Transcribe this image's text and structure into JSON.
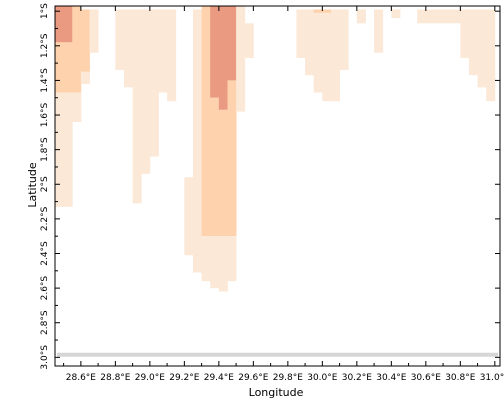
{
  "map": {
    "xlabel": "Longitude",
    "ylabel": "Latitude",
    "xlim": [
      28.45,
      31.03
    ],
    "ylim": [
      -3.05,
      -0.97
    ],
    "x_ticks": [
      {
        "value": 28.6,
        "label": "28.6°E"
      },
      {
        "value": 28.8,
        "label": "28.8°E"
      },
      {
        "value": 29.0,
        "label": "29.0°E"
      },
      {
        "value": 29.2,
        "label": "29.2°E"
      },
      {
        "value": 29.4,
        "label": "29.4°E"
      },
      {
        "value": 29.6,
        "label": "29.6°E"
      },
      {
        "value": 29.8,
        "label": "29.8°E"
      },
      {
        "value": 30.0,
        "label": "30.0°E"
      },
      {
        "value": 30.2,
        "label": "30.2°E"
      },
      {
        "value": 30.4,
        "label": "30.4°E"
      },
      {
        "value": 30.6,
        "label": "30.6°E"
      },
      {
        "value": 30.8,
        "label": "30.8°E"
      },
      {
        "value": 31.0,
        "label": "31.0°E"
      }
    ],
    "y_ticks": [
      {
        "value": -1.0,
        "label": "1°S"
      },
      {
        "value": -1.2,
        "label": "1.2°S"
      },
      {
        "value": -1.4,
        "label": "1.4°S"
      },
      {
        "value": -1.6,
        "label": "1.6°S"
      },
      {
        "value": -1.8,
        "label": "1.8°S"
      },
      {
        "value": -2.0,
        "label": "2°S"
      },
      {
        "value": -2.2,
        "label": "2.2°S"
      },
      {
        "value": -2.4,
        "label": "2.4°S"
      },
      {
        "value": -2.6,
        "label": "2.6°S"
      },
      {
        "value": -2.8,
        "label": "2.8°S"
      },
      {
        "value": -3.0,
        "label": "3.0°S"
      }
    ],
    "colors": {
      "level1": "#fbe8d6",
      "level2": "#fdd2ad",
      "level3": "#e99a80",
      "boundary": "#d6d6d6"
    },
    "cell_lon_width": 0.05,
    "boundary_lat": -2.985,
    "columns": [
      {
        "lon": 28.475,
        "bands": [
          {
            "level": 3,
            "top": -0.97,
            "bottom": -1.18
          },
          {
            "level": 2,
            "top": -1.18,
            "bottom": -1.47
          },
          {
            "level": 1,
            "top": -1.47,
            "bottom": -2.13
          }
        ]
      },
      {
        "lon": 28.525,
        "bands": [
          {
            "level": 3,
            "top": -0.97,
            "bottom": -1.18
          },
          {
            "level": 2,
            "top": -1.18,
            "bottom": -1.47
          },
          {
            "level": 1,
            "top": -1.47,
            "bottom": -2.13
          }
        ]
      },
      {
        "lon": 28.575,
        "bands": [
          {
            "level": 2,
            "top": -0.97,
            "bottom": -1.47
          },
          {
            "level": 1,
            "top": -1.47,
            "bottom": -1.64
          }
        ]
      },
      {
        "lon": 28.625,
        "bands": [
          {
            "level": 2,
            "top": -0.99,
            "bottom": -1.35
          },
          {
            "level": 1,
            "top": -1.35,
            "bottom": -1.42
          }
        ]
      },
      {
        "lon": 28.675,
        "bands": [
          {
            "level": 1,
            "top": -0.99,
            "bottom": -1.24
          }
        ]
      },
      {
        "lon": 28.825,
        "bands": [
          {
            "level": 1,
            "top": -0.99,
            "bottom": -1.34
          }
        ]
      },
      {
        "lon": 28.875,
        "bands": [
          {
            "level": 1,
            "top": -0.99,
            "bottom": -1.44
          }
        ]
      },
      {
        "lon": 28.925,
        "bands": [
          {
            "level": 1,
            "top": -0.99,
            "bottom": -2.11
          }
        ]
      },
      {
        "lon": 28.975,
        "bands": [
          {
            "level": 1,
            "top": -0.99,
            "bottom": -1.94
          }
        ]
      },
      {
        "lon": 29.025,
        "bands": [
          {
            "level": 1,
            "top": -0.99,
            "bottom": -1.84
          }
        ]
      },
      {
        "lon": 29.075,
        "bands": [
          {
            "level": 1,
            "top": -0.99,
            "bottom": -1.47
          }
        ]
      },
      {
        "lon": 29.125,
        "bands": [
          {
            "level": 1,
            "top": -0.99,
            "bottom": -1.52
          }
        ]
      },
      {
        "lon": 29.225,
        "bands": [
          {
            "level": 1,
            "top": -1.96,
            "bottom": -2.41
          }
        ]
      },
      {
        "lon": 29.275,
        "bands": [
          {
            "level": 1,
            "top": -0.99,
            "bottom": -2.51
          }
        ]
      },
      {
        "lon": 29.325,
        "bands": [
          {
            "level": 2,
            "top": -0.97,
            "bottom": -2.3
          },
          {
            "level": 1,
            "top": -2.3,
            "bottom": -2.56
          }
        ]
      },
      {
        "lon": 29.375,
        "bands": [
          {
            "level": 3,
            "top": -0.97,
            "bottom": -1.5
          },
          {
            "level": 2,
            "top": -1.5,
            "bottom": -2.3
          },
          {
            "level": 1,
            "top": -2.3,
            "bottom": -2.6
          }
        ]
      },
      {
        "lon": 29.425,
        "bands": [
          {
            "level": 3,
            "top": -0.97,
            "bottom": -1.57
          },
          {
            "level": 2,
            "top": -1.57,
            "bottom": -2.3
          },
          {
            "level": 1,
            "top": -2.3,
            "bottom": -2.62
          }
        ]
      },
      {
        "lon": 29.475,
        "bands": [
          {
            "level": 3,
            "top": -0.97,
            "bottom": -1.4
          },
          {
            "level": 2,
            "top": -1.4,
            "bottom": -2.3
          },
          {
            "level": 1,
            "top": -2.3,
            "bottom": -2.56
          }
        ]
      },
      {
        "lon": 29.525,
        "bands": [
          {
            "level": 1,
            "top": -0.97,
            "bottom": -1.58
          }
        ]
      },
      {
        "lon": 29.575,
        "bands": [
          {
            "level": 1,
            "top": -1.07,
            "bottom": -1.27
          }
        ]
      },
      {
        "lon": 29.875,
        "bands": [
          {
            "level": 1,
            "top": -0.99,
            "bottom": -1.27
          }
        ]
      },
      {
        "lon": 29.925,
        "bands": [
          {
            "level": 1,
            "top": -0.99,
            "bottom": -1.37
          }
        ]
      },
      {
        "lon": 29.975,
        "bands": [
          {
            "level": 2,
            "top": -0.99,
            "bottom": -1.01
          },
          {
            "level": 1,
            "top": -1.01,
            "bottom": -1.47
          }
        ]
      },
      {
        "lon": 30.025,
        "bands": [
          {
            "level": 2,
            "top": -0.99,
            "bottom": -1.01
          },
          {
            "level": 1,
            "top": -1.01,
            "bottom": -1.52
          }
        ]
      },
      {
        "lon": 30.075,
        "bands": [
          {
            "level": 1,
            "top": -0.99,
            "bottom": -1.52
          }
        ]
      },
      {
        "lon": 30.125,
        "bands": [
          {
            "level": 1,
            "top": -0.99,
            "bottom": -1.34
          }
        ]
      },
      {
        "lon": 30.225,
        "bands": [
          {
            "level": 1,
            "top": -0.99,
            "bottom": -1.07
          }
        ]
      },
      {
        "lon": 30.325,
        "bands": [
          {
            "level": 1,
            "top": -0.99,
            "bottom": -1.24
          }
        ]
      },
      {
        "lon": 30.425,
        "bands": [
          {
            "level": 1,
            "top": -0.99,
            "bottom": -1.04
          }
        ]
      },
      {
        "lon": 30.575,
        "bands": [
          {
            "level": 1,
            "top": -0.99,
            "bottom": -1.07
          }
        ]
      },
      {
        "lon": 30.625,
        "bands": [
          {
            "level": 1,
            "top": -0.99,
            "bottom": -1.07
          }
        ]
      },
      {
        "lon": 30.675,
        "bands": [
          {
            "level": 1,
            "top": -0.99,
            "bottom": -1.07
          }
        ]
      },
      {
        "lon": 30.725,
        "bands": [
          {
            "level": 1,
            "top": -0.99,
            "bottom": -1.07
          }
        ]
      },
      {
        "lon": 30.775,
        "bands": [
          {
            "level": 1,
            "top": -0.99,
            "bottom": -1.07
          }
        ]
      },
      {
        "lon": 30.825,
        "bands": [
          {
            "level": 1,
            "top": -0.99,
            "bottom": -1.27
          }
        ]
      },
      {
        "lon": 30.875,
        "bands": [
          {
            "level": 1,
            "top": -0.99,
            "bottom": -1.37
          }
        ]
      },
      {
        "lon": 30.925,
        "bands": [
          {
            "level": 1,
            "top": -0.99,
            "bottom": -1.44
          }
        ]
      },
      {
        "lon": 30.975,
        "bands": [
          {
            "level": 1,
            "top": -0.99,
            "bottom": -1.52
          }
        ]
      }
    ]
  }
}
